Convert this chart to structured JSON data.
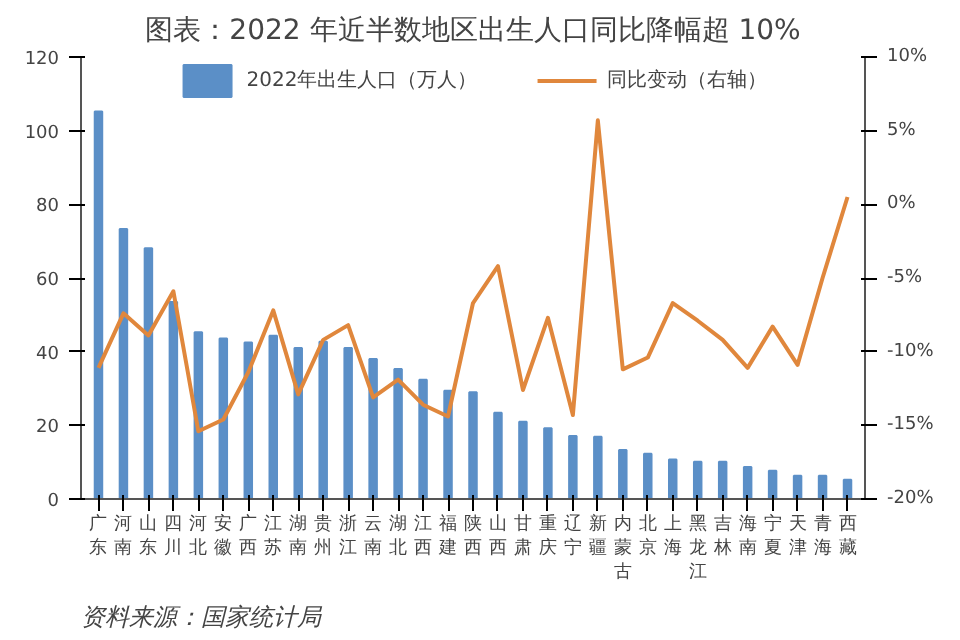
{
  "chart_data": {
    "type": "bar",
    "title": "图表：2022 年近半数地区出生人口同比降幅超 10%",
    "categories": [
      "广东",
      "河南",
      "山东",
      "四川",
      "河北",
      "安徽",
      "广西",
      "江苏",
      "湖南",
      "贵州",
      "浙江",
      "云南",
      "湖北",
      "江西",
      "福建",
      "陕西",
      "山西",
      "甘肃",
      "重庆",
      "辽宁",
      "新疆",
      "内蒙古",
      "北京",
      "上海",
      "黑龙江",
      "吉林",
      "海南",
      "宁夏",
      "天津",
      "青海",
      "西藏"
    ],
    "series": [
      {
        "name": "2022年出生人口（万人）",
        "color": "#5b8fc7",
        "values": [
          105.2,
          73.3,
          68.1,
          53.5,
          45.3,
          43.6,
          42.5,
          44.3,
          41.0,
          42.7,
          41.0,
          38.0,
          35.3,
          32.4,
          29.4,
          29.0,
          23.4,
          21.0,
          19.2,
          17.1,
          16.9,
          13.3,
          12.3,
          10.7,
          10.1,
          10.1,
          8.7,
          7.7,
          6.3,
          6.3,
          5.2
        ]
      },
      {
        "name": "同比变动（右轴）",
        "type": "line",
        "axis": "y2",
        "color": "#e0873c",
        "values": [
          -11.1,
          -7.4,
          -8.9,
          -5.9,
          -15.4,
          -14.6,
          -11.4,
          -7.2,
          -12.9,
          -9.2,
          -8.2,
          -13.1,
          -11.9,
          -13.6,
          -14.4,
          -6.7,
          -4.2,
          -12.6,
          -7.7,
          -14.3,
          5.7,
          -11.2,
          -10.4,
          -6.7,
          -7.9,
          -9.2,
          -11.1,
          -8.3,
          -10.9,
          -5.0,
          0.5
        ]
      }
    ],
    "ylim": [
      0,
      120
    ],
    "yticks": [
      0,
      20,
      40,
      60,
      80,
      100,
      120
    ],
    "y2lim": [
      -20,
      10
    ],
    "y2ticks": [
      {
        "value": -20,
        "label": "-20%"
      },
      {
        "value": -15,
        "label": "-15%"
      },
      {
        "value": -10,
        "label": "-10%"
      },
      {
        "value": -5,
        "label": "-5%"
      },
      {
        "value": 0,
        "label": "0%"
      },
      {
        "value": 5,
        "label": "5%"
      },
      {
        "value": 10,
        "label": "10%"
      }
    ],
    "legend": "top",
    "grid": false,
    "annotations": [
      "资料来源：国家统计局"
    ]
  }
}
